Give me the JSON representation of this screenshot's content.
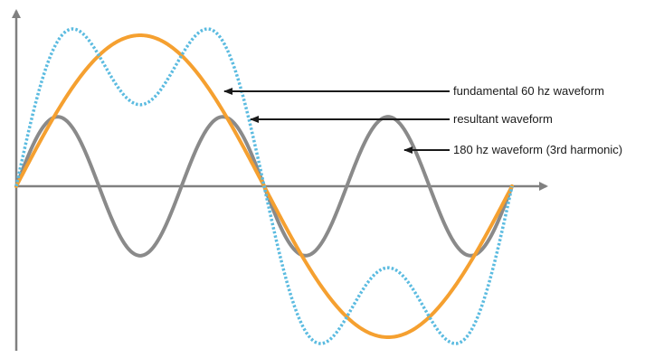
{
  "colors": {
    "background": "#ffffff",
    "axis": "#808080",
    "fundamental": "#f5a030",
    "resultant": "#5bbbe0",
    "harmonic": "#8a8a8a",
    "arrow": "#1a1a1a"
  },
  "waveforms": {
    "fundamental": {
      "amplitude": 1.0,
      "harmonic_order": 1
    },
    "harmonic": {
      "amplitude": 0.46,
      "harmonic_order": 3
    },
    "resultant": {
      "components": [
        "fundamental",
        "harmonic"
      ]
    }
  },
  "labels": {
    "fundamental": "fundamental 60 hz waveform",
    "resultant": "resultant waveform",
    "harmonic": "180 hz waveform (3rd harmonic)"
  }
}
